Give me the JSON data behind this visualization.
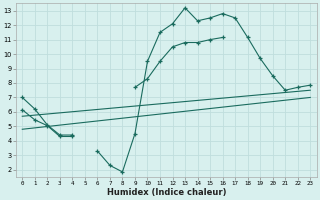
{
  "xlabel": "Humidex (Indice chaleur)",
  "background_color": "#d8f0ee",
  "grid_color": "#c0dedd",
  "line_color": "#1a6b5e",
  "x_ticks": [
    0,
    1,
    2,
    3,
    4,
    5,
    6,
    7,
    8,
    9,
    10,
    11,
    12,
    13,
    14,
    15,
    16,
    17,
    18,
    19,
    20,
    21,
    22,
    23
  ],
  "y_ticks": [
    2,
    3,
    4,
    5,
    6,
    7,
    8,
    9,
    10,
    11,
    12,
    13
  ],
  "xlim": [
    -0.5,
    23.5
  ],
  "ylim": [
    1.5,
    13.5
  ],
  "series_top_x": [
    0,
    1,
    2,
    3,
    4,
    6,
    7,
    8,
    9,
    10,
    11,
    12,
    13,
    14,
    15,
    16,
    17,
    18,
    19,
    20,
    21,
    22,
    23
  ],
  "series_top_y": [
    7.0,
    6.2,
    5.1,
    4.4,
    4.4,
    3.3,
    2.3,
    1.85,
    4.5,
    9.5,
    11.5,
    12.1,
    13.2,
    12.3,
    12.5,
    12.8,
    12.5,
    11.15,
    9.7,
    8.5,
    7.5,
    7.7,
    7.85
  ],
  "series_top_break_after": 4,
  "series_mid_x": [
    0,
    1,
    2,
    3,
    4,
    9,
    10,
    11,
    12,
    13,
    14,
    15,
    16
  ],
  "series_mid_y": [
    6.15,
    5.45,
    5.05,
    4.3,
    4.3,
    7.7,
    8.3,
    9.5,
    10.5,
    10.8,
    10.8,
    11.0,
    11.15
  ],
  "series_mid_break_after": 4,
  "trend1_x": [
    0,
    23
  ],
  "trend1_y": [
    5.7,
    7.5
  ],
  "trend2_x": [
    0,
    23
  ],
  "trend2_y": [
    4.8,
    7.0
  ]
}
